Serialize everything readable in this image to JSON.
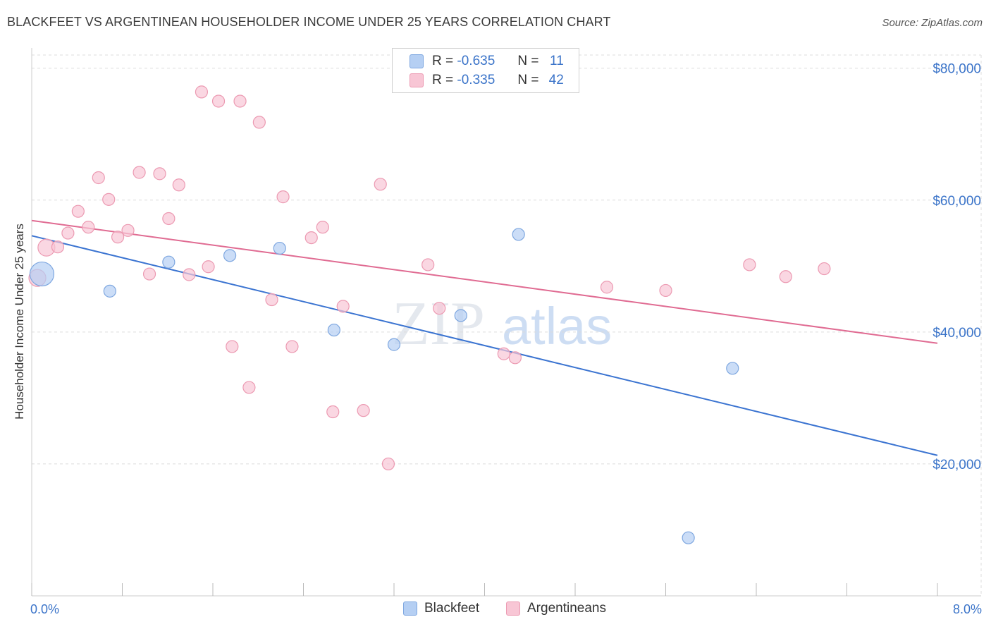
{
  "title": "BLACKFEET VS ARGENTINEAN HOUSEHOLDER INCOME UNDER 25 YEARS CORRELATION CHART",
  "source": "Source: ZipAtlas.com",
  "watermark": {
    "zip": "ZIP",
    "atlas": "atlas"
  },
  "legend": {
    "r_label": "R =",
    "n_label": "N =",
    "rows": [
      {
        "r": "-0.635",
        "n": "11",
        "color": "#b5cff3"
      },
      {
        "r": "-0.335",
        "n": "42",
        "color": "#f8c6d5"
      }
    ]
  },
  "bottom_legend": [
    {
      "label": "Blackfeet",
      "color": "#b5cff3"
    },
    {
      "label": "Argentineans",
      "color": "#f8c6d5"
    }
  ],
  "colors": {
    "blackfeet_line": "#3b74d1",
    "argentinean_line": "#e06b92",
    "blackfeet_fill": "#b5cff3",
    "argentinean_fill": "#f8c6d5",
    "tick_text": "#3b74c9"
  },
  "chart_data": {
    "type": "scatter",
    "title": "BLACKFEET VS ARGENTINEAN HOUSEHOLDER INCOME UNDER 25 YEARS CORRELATION CHART",
    "xlabel": "",
    "ylabel": "Householder Income Under 25 years",
    "xlim": [
      0,
      8
    ],
    "ylim": [
      0,
      82000
    ],
    "x_tick_labels": [
      "0.0%",
      "8.0%"
    ],
    "y_ticks": [
      20000,
      40000,
      60000,
      80000
    ],
    "y_tick_labels": [
      "$20,000",
      "$40,000",
      "$60,000",
      "$80,000"
    ],
    "grid": true,
    "legend_position": "top-center",
    "series": [
      {
        "name": "Blackfeet",
        "points": [
          [
            0.09,
            48800
          ],
          [
            0.69,
            46200
          ],
          [
            1.21,
            50600
          ],
          [
            1.75,
            51600
          ],
          [
            2.19,
            52700
          ],
          [
            2.67,
            40300
          ],
          [
            3.2,
            38100
          ],
          [
            3.79,
            42500
          ],
          [
            4.3,
            54800
          ],
          [
            5.8,
            8800
          ],
          [
            6.19,
            34500
          ]
        ],
        "trend": {
          "x": [
            0,
            8
          ],
          "y": [
            54600,
            21300
          ]
        }
      },
      {
        "name": "Argentineans",
        "points": [
          [
            0.05,
            48200
          ],
          [
            0.13,
            52800
          ],
          [
            0.23,
            52900
          ],
          [
            0.32,
            55000
          ],
          [
            0.41,
            58300
          ],
          [
            0.5,
            55900
          ],
          [
            0.59,
            63400
          ],
          [
            0.68,
            60100
          ],
          [
            0.76,
            54400
          ],
          [
            0.85,
            55400
          ],
          [
            0.95,
            64200
          ],
          [
            1.04,
            48800
          ],
          [
            1.13,
            64000
          ],
          [
            1.21,
            57200
          ],
          [
            1.3,
            62300
          ],
          [
            1.39,
            48700
          ],
          [
            1.5,
            76400
          ],
          [
            1.56,
            49900
          ],
          [
            1.65,
            75000
          ],
          [
            1.77,
            37800
          ],
          [
            1.84,
            75000
          ],
          [
            1.92,
            31600
          ],
          [
            2.01,
            71800
          ],
          [
            2.12,
            44900
          ],
          [
            2.22,
            60500
          ],
          [
            2.3,
            37800
          ],
          [
            2.47,
            54300
          ],
          [
            2.57,
            55900
          ],
          [
            2.66,
            27900
          ],
          [
            2.75,
            43900
          ],
          [
            2.93,
            28100
          ],
          [
            3.08,
            62400
          ],
          [
            3.15,
            20000
          ],
          [
            3.5,
            50200
          ],
          [
            3.6,
            43600
          ],
          [
            4.17,
            36700
          ],
          [
            4.27,
            36100
          ],
          [
            5.08,
            46800
          ],
          [
            5.6,
            46300
          ],
          [
            6.34,
            50200
          ],
          [
            6.66,
            48400
          ],
          [
            7.0,
            49600
          ]
        ],
        "trend": {
          "x": [
            0,
            8
          ],
          "y": [
            56900,
            38300
          ]
        }
      }
    ]
  }
}
